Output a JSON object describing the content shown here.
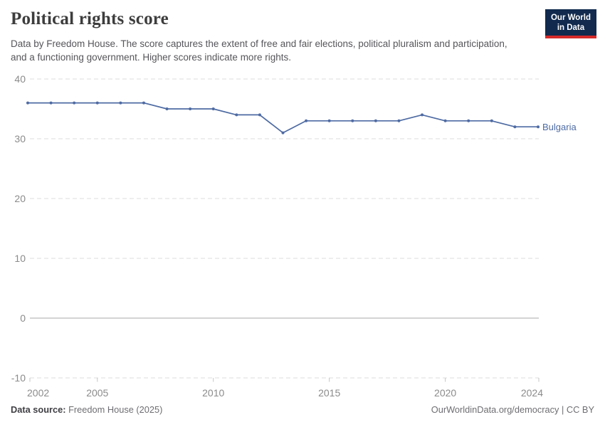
{
  "header": {
    "title": "Political rights score",
    "subtitle": "Data by Freedom House. The score captures the extent of free and fair elections, political pluralism and participation, and a functioning government. Higher scores indicate more rights.",
    "logo": {
      "line1": "Our World",
      "line2": "in Data"
    }
  },
  "chart_data": {
    "type": "line",
    "title": "Political rights score",
    "x": [
      2002,
      2003,
      2004,
      2005,
      2006,
      2007,
      2008,
      2009,
      2010,
      2011,
      2012,
      2013,
      2014,
      2015,
      2016,
      2017,
      2018,
      2019,
      2020,
      2021,
      2022,
      2023,
      2024
    ],
    "series": [
      {
        "name": "Bulgaria",
        "color": "#4e6ba3",
        "values": [
          36,
          36,
          36,
          36,
          36,
          36,
          35,
          35,
          35,
          34,
          34,
          31,
          33,
          33,
          33,
          33,
          33,
          34,
          33,
          33,
          33,
          32,
          32
        ]
      }
    ],
    "x_ticks": [
      2002,
      2005,
      2010,
      2015,
      2020,
      2024
    ],
    "y_ticks": [
      40,
      30,
      20,
      10,
      0,
      -10
    ],
    "xlim": [
      2002,
      2024
    ],
    "ylim": [
      -10,
      40
    ],
    "xlabel": "",
    "ylabel": "",
    "grid": "horizontal-dashed",
    "legend_position": "end-of-line-label"
  },
  "footer": {
    "source_label": "Data source:",
    "source_value": " Freedom House (2025)",
    "attribution": "OurWorldinData.org/democracy | CC BY"
  },
  "colors": {
    "line": "#4e6ba3",
    "axis_label": "#8b8b8b",
    "gridline": "#dcdcdc",
    "zero_line": "#a8a8a8",
    "tick": "#c4c4c4",
    "title": "#3d3d3d",
    "subtitle": "#56565b",
    "logo_bg": "#112a4e",
    "logo_accent": "#d62a2a"
  }
}
